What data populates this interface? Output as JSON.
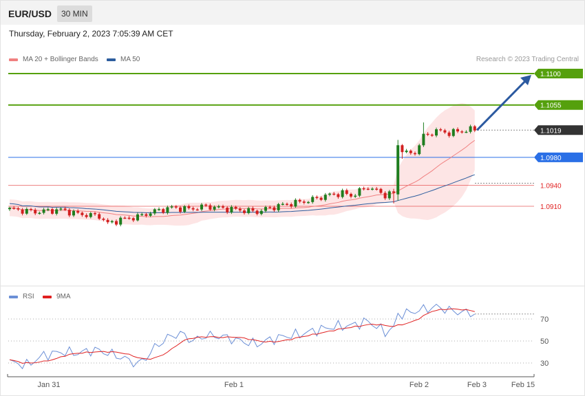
{
  "header": {
    "pair": "EUR/USD",
    "timeframe": "30 MIN"
  },
  "datetime": "Thursday, February 2, 2023 7:05:39 AM CET",
  "legend": {
    "price": [
      {
        "label": "MA 20 + Bollinger Bands",
        "color": "#f08080"
      },
      {
        "label": "MA 50",
        "color": "#2c5d9e"
      }
    ],
    "rsi": [
      {
        "label": "RSI",
        "color": "#6b8fd6"
      },
      {
        "label": "9MA",
        "color": "#e02020"
      }
    ]
  },
  "credit": "Research © 2023 Trading Central",
  "colors": {
    "up": "#1e7d1e",
    "down": "#d22020",
    "target": "#55a00d",
    "pivot": "#2a6fe6",
    "support": "#e02020",
    "current": "#333333",
    "arrow": "#2c5aa0"
  },
  "chart_data": [
    {
      "type": "candlestick",
      "ylim": [
        1.0835,
        1.1115
      ],
      "levels": [
        {
          "value": 1.11,
          "label": "1.1100",
          "kind": "target"
        },
        {
          "value": 1.1055,
          "label": "1.1055",
          "kind": "target"
        },
        {
          "value": 1.1019,
          "label": "1.1019",
          "kind": "current"
        },
        {
          "value": 1.098,
          "label": "1.0980",
          "kind": "pivot"
        },
        {
          "value": 1.094,
          "label": "1.0940",
          "kind": "support"
        },
        {
          "value": 1.091,
          "label": "1.0910",
          "kind": "support"
        }
      ],
      "projection": {
        "from": 1.1019,
        "to": 1.11
      },
      "ma50_last": 1.0943
    },
    {
      "type": "line",
      "name": "RSI",
      "yticks": [
        30,
        50,
        70
      ],
      "ylim": [
        16,
        80
      ],
      "series": [
        {
          "name": "RSI"
        },
        {
          "name": "9MA"
        }
      ]
    }
  ],
  "xaxis": {
    "ticks": [
      "Jan 31",
      "Feb 1",
      "Feb 2",
      "Feb 3",
      "Feb 15"
    ]
  }
}
